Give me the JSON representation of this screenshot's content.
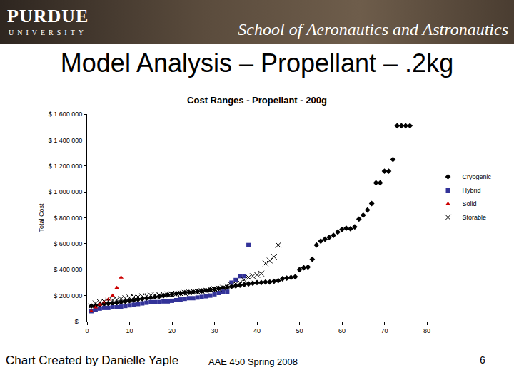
{
  "slide": {
    "logo_top": "PURDUE",
    "logo_bottom": "UNIVERSITY",
    "school": "School of Aeronautics and Astronautics",
    "title": "Model Analysis – Propellant – .2kg",
    "credit": "Chart Created by Danielle Yaple",
    "course": "AAE 450 Spring 2008",
    "page": 6
  },
  "chart_data": {
    "type": "scatter",
    "title": "Cost Ranges - Propellant - 200g",
    "y_label": "Total Cost",
    "xlim": [
      0,
      80
    ],
    "xticks": [
      0,
      10,
      20,
      30,
      40,
      50,
      60,
      70,
      80
    ],
    "ylim": [
      0,
      1600000
    ],
    "yticks": [
      {
        "value": 0,
        "label": "$ -"
      },
      {
        "value": 200000,
        "label": "$ 200 000"
      },
      {
        "value": 400000,
        "label": "$ 400 000"
      },
      {
        "value": 600000,
        "label": "$ 600 000"
      },
      {
        "value": 800000,
        "label": "$ 800 000"
      },
      {
        "value": 1000000,
        "label": "$ 1 000 000"
      },
      {
        "value": 1200000,
        "label": "$ 1 200 000"
      },
      {
        "value": 1400000,
        "label": "$ 1 400 000"
      },
      {
        "value": 1600000,
        "label": "$ 1 600 000"
      }
    ],
    "grid": false,
    "legend": "right",
    "series": [
      {
        "name": "Cryogenic",
        "color": "#000000",
        "marker": "diamond",
        "x": [
          1,
          2,
          3,
          4,
          5,
          6,
          7,
          8,
          9,
          10,
          11,
          12,
          13,
          14,
          15,
          16,
          17,
          18,
          19,
          20,
          21,
          22,
          23,
          24,
          25,
          26,
          27,
          28,
          29,
          30,
          31,
          32,
          33,
          34,
          35,
          36,
          37,
          38,
          39,
          40,
          41,
          42,
          43,
          44,
          45,
          46,
          47,
          48,
          49,
          50,
          51,
          52,
          53,
          54,
          55,
          56,
          57,
          58,
          59,
          60,
          61,
          62,
          63,
          64,
          65,
          66,
          67,
          68,
          69,
          70,
          71,
          72,
          73,
          74,
          75,
          76
        ],
        "values": [
          120000,
          125000,
          130000,
          135000,
          138000,
          140000,
          145000,
          150000,
          155000,
          160000,
          165000,
          170000,
          175000,
          180000,
          185000,
          190000,
          195000,
          200000,
          205000,
          210000,
          215000,
          218000,
          222000,
          225000,
          228000,
          232000,
          236000,
          240000,
          245000,
          250000,
          255000,
          260000,
          265000,
          270000,
          275000,
          280000,
          285000,
          290000,
          295000,
          300000,
          300000,
          305000,
          305000,
          310000,
          315000,
          330000,
          335000,
          340000,
          345000,
          400000,
          415000,
          420000,
          480000,
          590000,
          620000,
          635000,
          650000,
          665000,
          690000,
          710000,
          720000,
          715000,
          730000,
          790000,
          820000,
          860000,
          910000,
          1070000,
          1070000,
          1160000,
          1160000,
          1250000,
          1510000,
          1510000,
          1510000,
          1510000
        ]
      },
      {
        "name": "Hybrid",
        "color": "#333399",
        "marker": "square",
        "x": [
          1,
          2,
          3,
          4,
          5,
          6,
          7,
          8,
          9,
          10,
          11,
          12,
          13,
          14,
          15,
          16,
          17,
          18,
          19,
          20,
          21,
          22,
          23,
          24,
          25,
          26,
          27,
          28,
          29,
          30,
          31,
          32,
          33,
          34,
          35,
          36,
          37,
          38
        ],
        "values": [
          80000,
          90000,
          100000,
          105000,
          105000,
          110000,
          110000,
          115000,
          120000,
          125000,
          130000,
          135000,
          140000,
          145000,
          150000,
          150000,
          150000,
          155000,
          155000,
          160000,
          165000,
          170000,
          175000,
          180000,
          180000,
          185000,
          190000,
          195000,
          200000,
          210000,
          220000,
          230000,
          230000,
          300000,
          320000,
          350000,
          350000,
          590000
        ]
      },
      {
        "name": "Solid",
        "color": "#cc0000",
        "marker": "triangle",
        "x": [
          1,
          2,
          3,
          4,
          5,
          6,
          7,
          8
        ],
        "values": [
          80000,
          110000,
          130000,
          150000,
          170000,
          200000,
          260000,
          340000
        ]
      },
      {
        "name": "Storable",
        "color": "#000000",
        "marker": "x",
        "x": [
          1,
          2,
          3,
          4,
          5,
          6,
          7,
          8,
          9,
          10,
          11,
          12,
          13,
          14,
          15,
          16,
          17,
          18,
          19,
          20,
          21,
          22,
          23,
          24,
          25,
          26,
          27,
          28,
          29,
          30,
          31,
          32,
          33,
          34,
          35,
          36,
          37,
          38,
          39,
          40,
          41,
          42,
          43,
          44,
          45
        ],
        "values": [
          120000,
          140000,
          150000,
          155000,
          160000,
          165000,
          170000,
          175000,
          180000,
          185000,
          190000,
          190000,
          195000,
          195000,
          200000,
          200000,
          205000,
          205000,
          210000,
          210000,
          215000,
          215000,
          220000,
          225000,
          230000,
          230000,
          235000,
          240000,
          245000,
          250000,
          255000,
          260000,
          270000,
          280000,
          290000,
          300000,
          320000,
          340000,
          350000,
          360000,
          370000,
          450000,
          470000,
          500000,
          590000
        ]
      }
    ]
  }
}
